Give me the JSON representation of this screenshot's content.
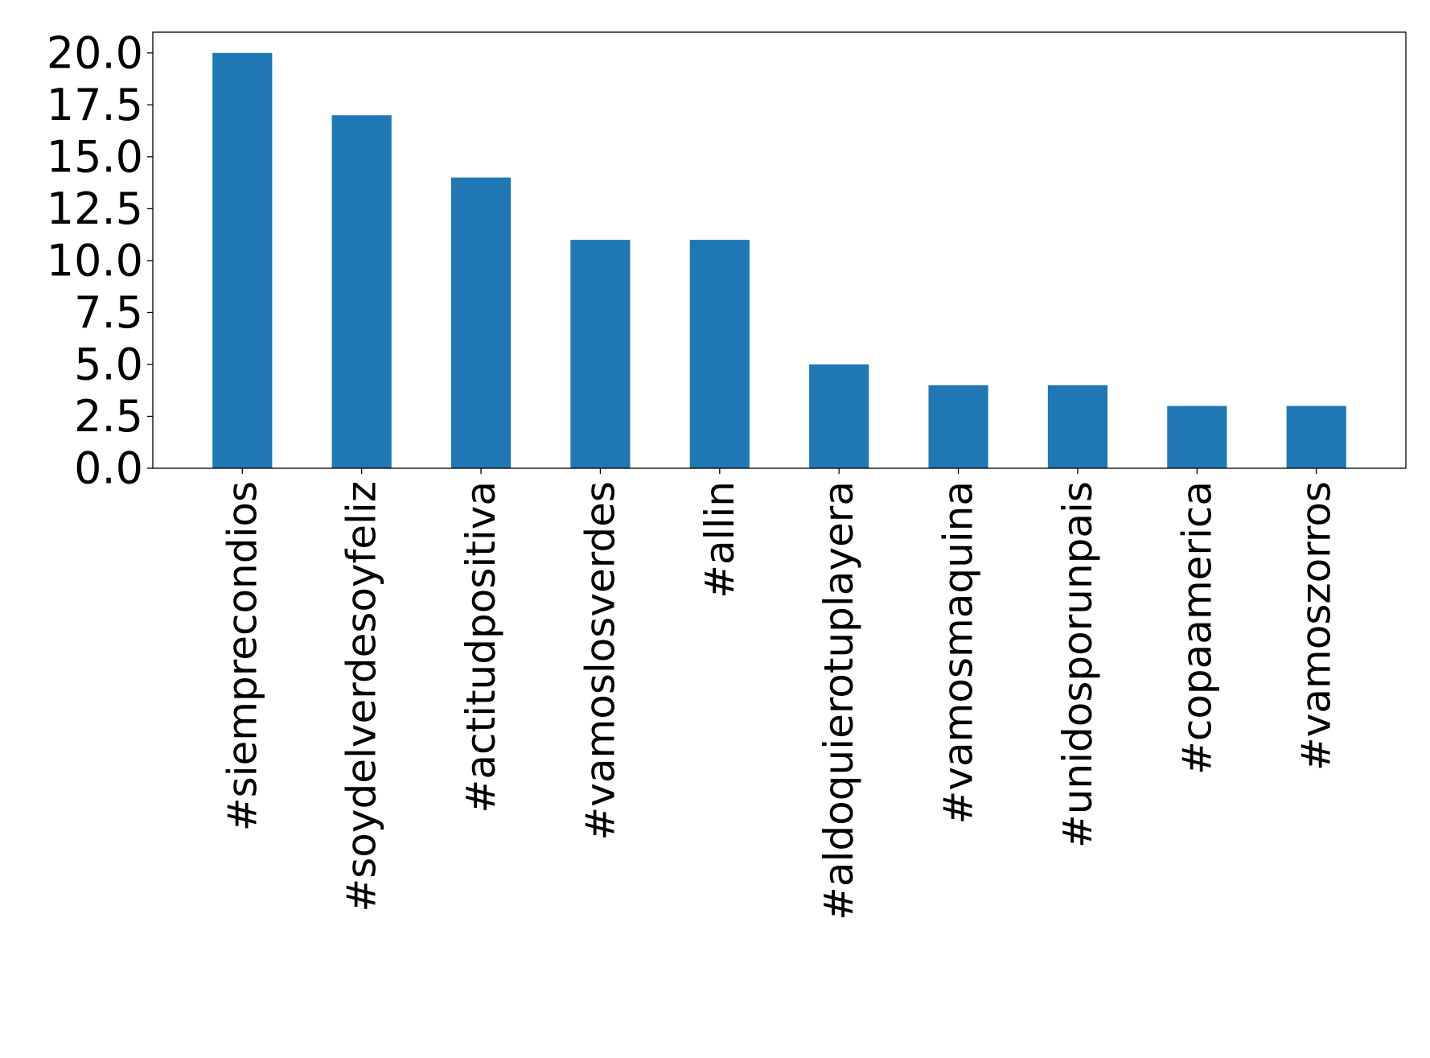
{
  "chart_data": {
    "type": "bar",
    "title": "",
    "xlabel": "",
    "ylabel": "",
    "categories": [
      "#siemprecondios",
      "#soydelverdesoyfeliz",
      "#actitudpositiva",
      "#vamoslosverdes",
      "#allin",
      "#aldoquierotuplayera",
      "#vamosmaquina",
      "#unidosporunpais",
      "#copaamerica",
      "#vamoszorros"
    ],
    "values": [
      20,
      17,
      14,
      11,
      11,
      5,
      4,
      4,
      3,
      3
    ],
    "ylim": [
      0,
      21
    ],
    "yticks": [
      "0.0",
      "2.5",
      "5.0",
      "7.5",
      "10.0",
      "12.5",
      "15.0",
      "17.5",
      "20.0"
    ],
    "grid": false,
    "legend": "none",
    "bar_color": "#1f77b4"
  }
}
